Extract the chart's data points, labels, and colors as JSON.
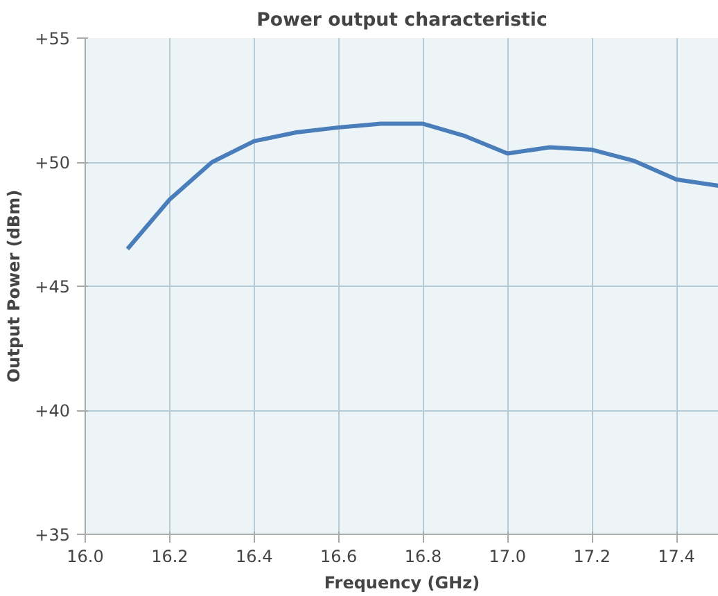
{
  "chart_data": {
    "type": "line",
    "title": "Power output characteristic",
    "xlabel": "Frequency (GHz)",
    "ylabel": "Output Power (dBm)",
    "x": [
      16.1,
      16.2,
      16.3,
      16.4,
      16.5,
      16.6,
      16.7,
      16.8,
      16.9,
      17.0,
      17.1,
      17.2,
      17.3,
      17.4,
      17.5
    ],
    "series": [
      {
        "color": "#4a7ebb",
        "values": [
          46.5,
          48.5,
          50.0,
          50.85,
          51.2,
          51.4,
          51.55,
          51.55,
          51.05,
          50.35,
          50.6,
          50.5,
          50.05,
          49.3,
          49.05
        ]
      }
    ],
    "xlim": [
      16.0,
      17.5
    ],
    "xticks": [
      {
        "value": 16.0,
        "label": "16.0"
      },
      {
        "value": 16.2,
        "label": "16.2"
      },
      {
        "value": 16.4,
        "label": "16.4"
      },
      {
        "value": 16.6,
        "label": "16.6"
      },
      {
        "value": 16.8,
        "label": "16.8"
      },
      {
        "value": 17.0,
        "label": "17.0"
      },
      {
        "value": 17.2,
        "label": "17.2"
      },
      {
        "value": 17.4,
        "label": "17.4"
      }
    ],
    "ylim": [
      35,
      55
    ],
    "yticks": [
      {
        "value": 35,
        "label": "+35"
      },
      {
        "value": 40,
        "label": "+40"
      },
      {
        "value": 45,
        "label": "+45"
      },
      {
        "value": 50,
        "label": "+50"
      },
      {
        "value": 55,
        "label": "+55"
      }
    ],
    "grid": true,
    "line_style": "solid"
  }
}
